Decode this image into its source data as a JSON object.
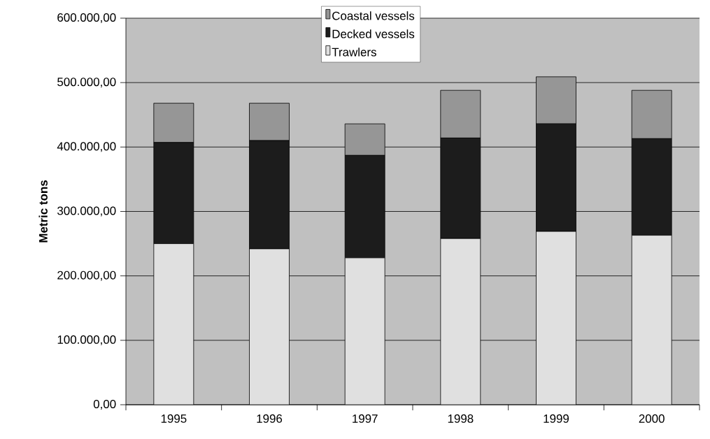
{
  "chart_data": {
    "type": "bar",
    "stacked": true,
    "ylabel": "Metric tons",
    "categories": [
      "1995",
      "1996",
      "1997",
      "1998",
      "1999",
      "2000"
    ],
    "series": [
      {
        "name": "Trawlers",
        "color": "#e0e0e0",
        "values": [
          250000,
          242000,
          228000,
          258000,
          269000,
          263000
        ]
      },
      {
        "name": "Decked vessels",
        "color": "#1c1c1c",
        "values": [
          157000,
          168000,
          159000,
          156000,
          167000,
          150000
        ]
      },
      {
        "name": "Coastal vessels",
        "color": "#969696",
        "values": [
          61000,
          58000,
          49000,
          74000,
          73000,
          75000
        ]
      }
    ],
    "ylim": [
      0,
      600000
    ],
    "yticks": [
      {
        "value": 0,
        "label": "0,00"
      },
      {
        "value": 100000,
        "label": "100.000,00"
      },
      {
        "value": 200000,
        "label": "200.000,00"
      },
      {
        "value": 300000,
        "label": "300.000,00"
      },
      {
        "value": 400000,
        "label": "400.000,00"
      },
      {
        "value": 500000,
        "label": "500.000,00"
      },
      {
        "value": 600000,
        "label": "600.000,00"
      }
    ],
    "grid": "y",
    "legend": "top"
  }
}
